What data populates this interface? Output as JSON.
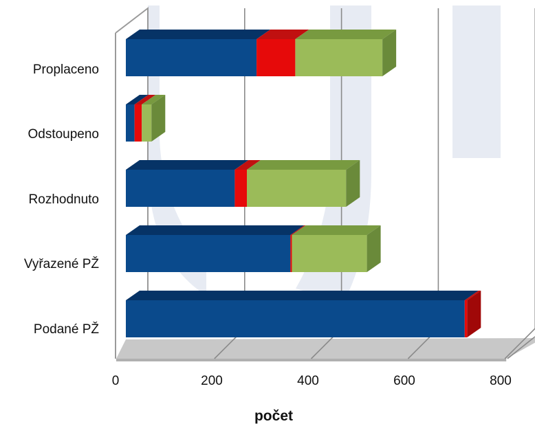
{
  "chart_data": {
    "type": "bar",
    "orientation": "horizontal",
    "stacked": true,
    "three_d": true,
    "categories": [
      "Proplaceno",
      "Odstoupeno",
      "Rozhodnuto",
      "Vyřazené PŽ",
      "Podané PŽ"
    ],
    "series": [
      {
        "color": "#0a4a8c",
        "side_color": "#08376a",
        "top_color": "#063366",
        "values": [
          270,
          18,
          225,
          340,
          700
        ]
      },
      {
        "color": "#e60a0a",
        "side_color": "#a00808",
        "top_color": "#c01010",
        "values": [
          80,
          15,
          25,
          3,
          5
        ]
      },
      {
        "color": "#9bbb59",
        "side_color": "#6a8a3a",
        "top_color": "#789a40",
        "values": [
          180,
          20,
          205,
          155,
          0
        ]
      }
    ],
    "xlabel": "počet",
    "ylabel": "",
    "xlim": [
      0,
      800
    ],
    "xticks": [
      0,
      200,
      400,
      600,
      800
    ],
    "grid": true,
    "legend": "none"
  }
}
